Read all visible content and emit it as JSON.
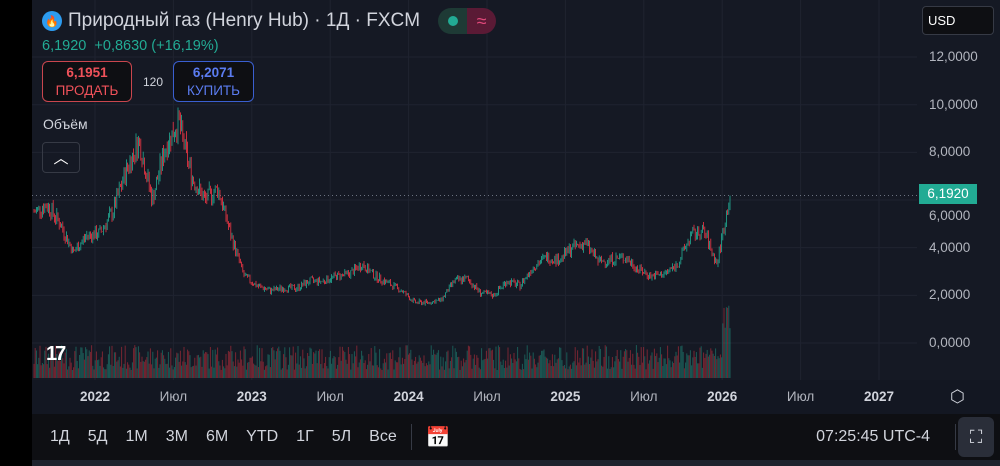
{
  "header": {
    "title": "Природный газ (Henry Hub) · 1Д · FXCM",
    "last": "6,1920",
    "change": "+0,8630 (+16,19%)"
  },
  "trade": {
    "sell_price": "6,1951",
    "sell_label": "ПРОДАТЬ",
    "spread": "120",
    "buy_price": "6,2071",
    "buy_label": "КУПИТЬ"
  },
  "volume_label": "Объём",
  "currency": "USD",
  "price_axis": [
    "12,0000",
    "10,0000",
    "8,0000",
    "6,0000",
    "4,0000",
    "2,0000",
    "0,0000"
  ],
  "last_price_label": "6,1920",
  "time_axis": [
    {
      "t": "2022",
      "y": true
    },
    {
      "t": "Июл"
    },
    {
      "t": "2023",
      "y": true
    },
    {
      "t": "Июл"
    },
    {
      "t": "2024",
      "y": true
    },
    {
      "t": "Июл"
    },
    {
      "t": "2025",
      "y": true
    },
    {
      "t": "Июл"
    },
    {
      "t": "2026",
      "y": true
    },
    {
      "t": "Июл"
    },
    {
      "t": "2027",
      "y": true
    }
  ],
  "ranges": [
    "1Д",
    "5Д",
    "1М",
    "3М",
    "6М",
    "YTD",
    "1Г",
    "5Л",
    "Все"
  ],
  "clock": "07:25:45 UTC-4",
  "colors": {
    "up": "#22ab94",
    "down": "#f23645",
    "bg": "#151924"
  },
  "chart_data": {
    "type": "candlestick",
    "start": "2021-09",
    "frequency": "monthly-approx",
    "closes": [
      5.5,
      5.8,
      5.0,
      3.8,
      4.5,
      4.6,
      5.5,
      7.2,
      8.5,
      6.0,
      8.2,
      9.3,
      7.0,
      6.0,
      6.5,
      4.5,
      2.8,
      2.4,
      2.2,
      2.3,
      2.3,
      2.6,
      2.6,
      2.8,
      2.9,
      3.3,
      2.8,
      2.5,
      2.2,
      1.7,
      1.7,
      1.8,
      2.6,
      2.7,
      2.1,
      2.0,
      2.6,
      2.4,
      3.2,
      3.6,
      3.5,
      4.0,
      4.2,
      3.4,
      3.5,
      3.6,
      3.1,
      2.8,
      2.9,
      3.3,
      4.5,
      4.7,
      3.3,
      6.19
    ],
    "ylim": [
      0,
      12
    ]
  }
}
